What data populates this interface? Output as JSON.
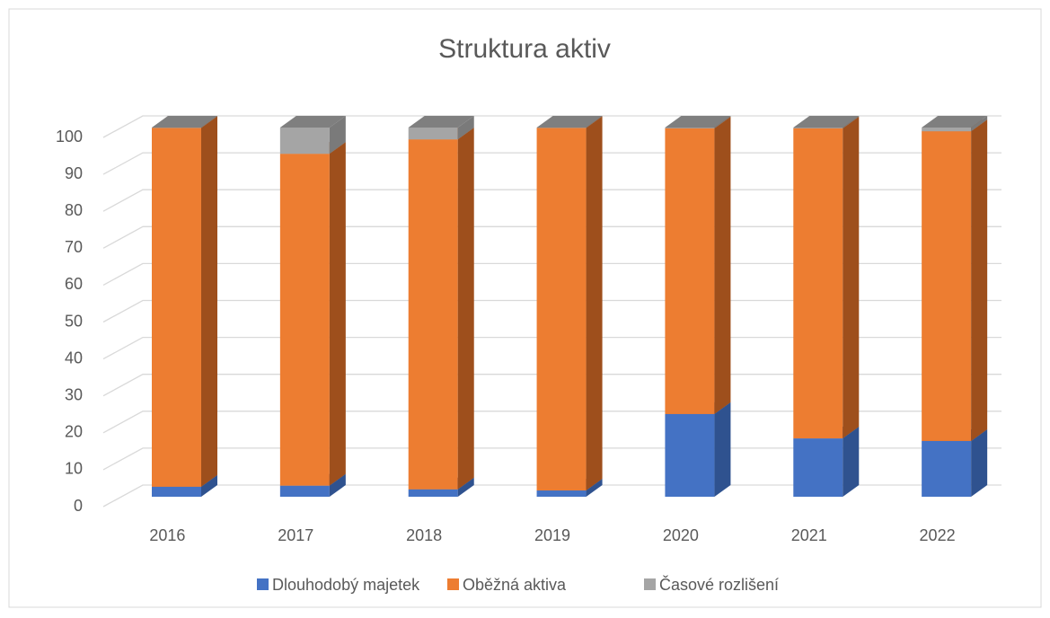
{
  "chart_data": {
    "type": "stacked_bar_3d",
    "title": "Struktura aktiv",
    "categories": [
      "2016",
      "2017",
      "2018",
      "2019",
      "2020",
      "2021",
      "2022"
    ],
    "series": [
      {
        "name": "Dlouhodobý majetek",
        "color": "#4472c4",
        "side": "#2f528f",
        "values": [
          2.7,
          3.0,
          2.0,
          1.7,
          22.4,
          15.8,
          15.1
        ]
      },
      {
        "name": "Oběžná aktiva",
        "color": "#ed7d31",
        "side": "#9e4f1c",
        "values": [
          97.2,
          89.9,
          94.8,
          98.2,
          77.4,
          84.0,
          83.9
        ]
      },
      {
        "name": "Časové rozlišení",
        "color": "#a5a5a5",
        "side": "#7a7a7a",
        "values": [
          0.1,
          7.1,
          3.2,
          0.1,
          0.2,
          0.2,
          1.0
        ]
      }
    ],
    "ylim": [
      0,
      100
    ],
    "yticks": [
      0,
      10,
      20,
      30,
      40,
      50,
      60,
      70,
      80,
      90,
      100
    ],
    "grid": true,
    "legend": "bottom"
  }
}
